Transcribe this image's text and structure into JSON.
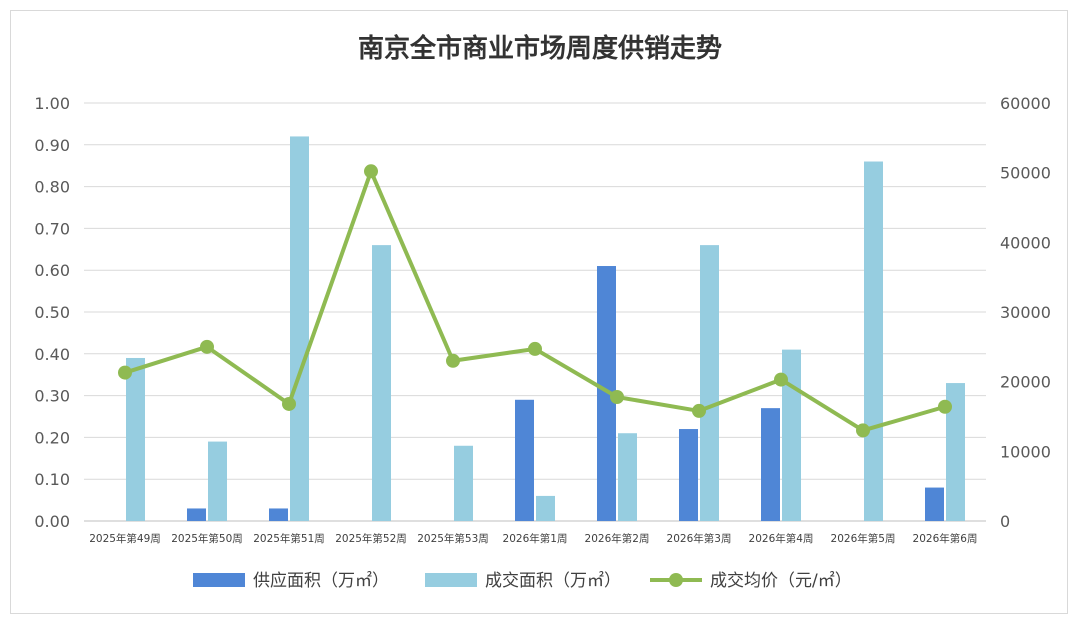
{
  "chart_data": {
    "type": "bar+line",
    "title": "南京全市商业市场周度供销走势",
    "categories": [
      "2025年第49周",
      "2025年第50周",
      "2025年第51周",
      "2025年第52周",
      "2025年第53周",
      "2026年第1周",
      "2026年第2周",
      "2026年第3周",
      "2026年第4周",
      "2026年第5周",
      "2026年第6周"
    ],
    "series": [
      {
        "name": "供应面积（万㎡）",
        "type": "bar",
        "axis": "left",
        "color": "#4f86d6",
        "values": [
          0,
          0.03,
          0.03,
          0,
          0,
          0.29,
          0.61,
          0.22,
          0.27,
          0,
          0.08
        ]
      },
      {
        "name": "成交面积（万㎡）",
        "type": "bar",
        "axis": "left",
        "color": "#96cde0",
        "values": [
          0.39,
          0.19,
          0.92,
          0.66,
          0.18,
          0.06,
          0.21,
          0.66,
          0.41,
          0.86,
          0.33
        ]
      },
      {
        "name": "成交均价（元/㎡）",
        "type": "line",
        "axis": "right",
        "color": "#8fba52",
        "values": [
          21300,
          25000,
          16800,
          50200,
          23000,
          24700,
          17800,
          15800,
          20300,
          13000,
          16400
        ]
      }
    ],
    "left_axis": {
      "min": 0,
      "max": 1.0,
      "ticks": [
        "0.00",
        "0.10",
        "0.20",
        "0.30",
        "0.40",
        "0.50",
        "0.60",
        "0.70",
        "0.80",
        "0.90",
        "1.00"
      ]
    },
    "right_axis": {
      "min": 0,
      "max": 60000,
      "ticks": [
        "0",
        "10000",
        "20000",
        "30000",
        "40000",
        "50000",
        "60000"
      ]
    },
    "grid": true,
    "legend_position": "bottom"
  }
}
